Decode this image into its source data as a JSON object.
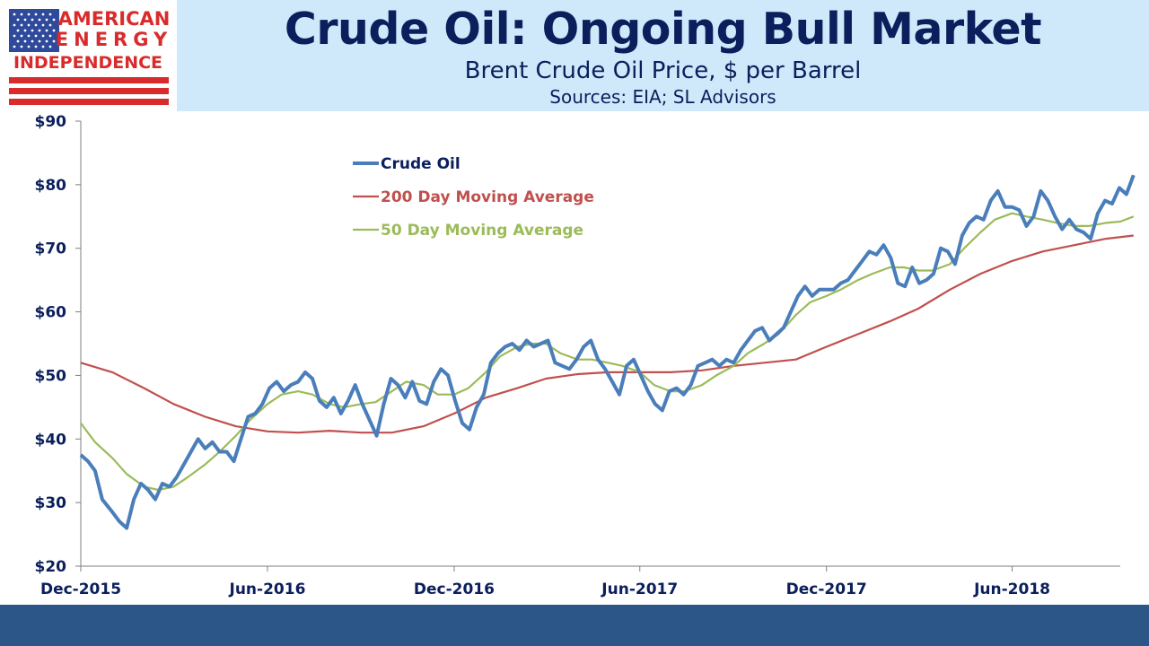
{
  "header": {
    "title": "Crude Oil: Ongoing Bull Market",
    "subtitle": "Brent Crude Oil Price, $ per Barrel",
    "sources": "Sources: EIA; SL Advisors"
  },
  "logo": {
    "line1": "AMERICAN",
    "line2": "ENERGY",
    "line3": "INDEPENDENCE"
  },
  "colors": {
    "title": "#0b1f5c",
    "header_band": "#cfe9fb",
    "footer": "#2c5688",
    "logo_red": "#d92b2b",
    "logo_blue": "#2f4a9a"
  },
  "chart_data": {
    "type": "line",
    "title": "",
    "xlabel": "",
    "ylabel": "",
    "ylim": [
      20,
      90
    ],
    "yticks": [
      20,
      30,
      40,
      50,
      60,
      70,
      80,
      90
    ],
    "ytick_labels": [
      "$20",
      "$30",
      "$40",
      "$50",
      "$60",
      "$70",
      "$80",
      "$90"
    ],
    "xlim": [
      "2015-12-01",
      "2018-09-15"
    ],
    "xticks": [
      "2015-12-01",
      "2016-06-01",
      "2016-12-01",
      "2017-06-01",
      "2017-12-01",
      "2018-06-01"
    ],
    "xtick_labels": [
      "Dec-2015",
      "Jun-2016",
      "Dec-2016",
      "Jun-2017",
      "Dec-2017",
      "Jun-2018"
    ],
    "grid": false,
    "legend_position": "top-left",
    "series": [
      {
        "name": "Crude Oil",
        "color": "#4a7ebb",
        "points": [
          [
            "2015-12-01",
            37.5
          ],
          [
            "2015-12-08",
            36.5
          ],
          [
            "2015-12-15",
            35.0
          ],
          [
            "2015-12-22",
            30.5
          ],
          [
            "2016-01-01",
            28.5
          ],
          [
            "2016-01-08",
            27.0
          ],
          [
            "2016-01-15",
            26.0
          ],
          [
            "2016-01-22",
            30.5
          ],
          [
            "2016-01-29",
            33.0
          ],
          [
            "2016-02-05",
            32.0
          ],
          [
            "2016-02-12",
            30.5
          ],
          [
            "2016-02-19",
            33.0
          ],
          [
            "2016-02-26",
            32.5
          ],
          [
            "2016-03-04",
            34.0
          ],
          [
            "2016-03-11",
            36.0
          ],
          [
            "2016-03-18",
            38.0
          ],
          [
            "2016-03-25",
            40.0
          ],
          [
            "2016-04-01",
            38.5
          ],
          [
            "2016-04-08",
            39.5
          ],
          [
            "2016-04-15",
            38.0
          ],
          [
            "2016-04-22",
            38.0
          ],
          [
            "2016-04-29",
            36.5
          ],
          [
            "2016-05-06",
            40.0
          ],
          [
            "2016-05-13",
            43.5
          ],
          [
            "2016-05-20",
            44.0
          ],
          [
            "2016-05-27",
            45.5
          ],
          [
            "2016-06-03",
            48.0
          ],
          [
            "2016-06-10",
            49.0
          ],
          [
            "2016-06-17",
            47.5
          ],
          [
            "2016-06-24",
            48.5
          ],
          [
            "2016-07-01",
            49.0
          ],
          [
            "2016-07-08",
            50.5
          ],
          [
            "2016-07-15",
            49.5
          ],
          [
            "2016-07-22",
            46.0
          ],
          [
            "2016-07-29",
            45.0
          ],
          [
            "2016-08-05",
            46.5
          ],
          [
            "2016-08-12",
            44.0
          ],
          [
            "2016-08-19",
            46.0
          ],
          [
            "2016-08-26",
            48.5
          ],
          [
            "2016-09-02",
            45.5
          ],
          [
            "2016-09-09",
            43.0
          ],
          [
            "2016-09-16",
            40.5
          ],
          [
            "2016-09-23",
            45.5
          ],
          [
            "2016-09-30",
            49.5
          ],
          [
            "2016-10-07",
            48.5
          ],
          [
            "2016-10-14",
            46.5
          ],
          [
            "2016-10-21",
            49.0
          ],
          [
            "2016-10-28",
            46.0
          ],
          [
            "2016-11-04",
            45.5
          ],
          [
            "2016-11-11",
            49.0
          ],
          [
            "2016-11-18",
            51.0
          ],
          [
            "2016-11-25",
            50.0
          ],
          [
            "2016-12-02",
            46.0
          ],
          [
            "2016-12-09",
            42.5
          ],
          [
            "2016-12-16",
            41.5
          ],
          [
            "2016-12-23",
            45.0
          ],
          [
            "2016-12-30",
            47.0
          ],
          [
            "2017-01-06",
            52.0
          ],
          [
            "2017-01-13",
            53.5
          ],
          [
            "2017-01-20",
            54.5
          ],
          [
            "2017-01-27",
            55.0
          ],
          [
            "2017-02-03",
            54.0
          ],
          [
            "2017-02-10",
            55.5
          ],
          [
            "2017-02-17",
            54.5
          ],
          [
            "2017-02-24",
            55.0
          ],
          [
            "2017-03-03",
            55.5
          ],
          [
            "2017-03-10",
            52.0
          ],
          [
            "2017-03-17",
            51.5
          ],
          [
            "2017-03-24",
            51.0
          ],
          [
            "2017-03-31",
            52.5
          ],
          [
            "2017-04-07",
            54.5
          ],
          [
            "2017-04-14",
            55.5
          ],
          [
            "2017-04-21",
            52.5
          ],
          [
            "2017-04-28",
            51.0
          ],
          [
            "2017-05-05",
            49.0
          ],
          [
            "2017-05-12",
            47.0
          ],
          [
            "2017-05-19",
            51.5
          ],
          [
            "2017-05-26",
            52.5
          ],
          [
            "2017-06-02",
            50.0
          ],
          [
            "2017-06-09",
            47.5
          ],
          [
            "2017-06-16",
            45.5
          ],
          [
            "2017-06-23",
            44.5
          ],
          [
            "2017-06-30",
            47.5
          ],
          [
            "2017-07-07",
            48.0
          ],
          [
            "2017-07-14",
            47.0
          ],
          [
            "2017-07-21",
            48.5
          ],
          [
            "2017-07-28",
            51.5
          ],
          [
            "2017-08-04",
            52.0
          ],
          [
            "2017-08-11",
            52.5
          ],
          [
            "2017-08-18",
            51.5
          ],
          [
            "2017-08-25",
            52.5
          ],
          [
            "2017-09-01",
            52.0
          ],
          [
            "2017-09-08",
            54.0
          ],
          [
            "2017-09-15",
            55.5
          ],
          [
            "2017-09-22",
            57.0
          ],
          [
            "2017-09-29",
            57.5
          ],
          [
            "2017-10-06",
            55.5
          ],
          [
            "2017-10-13",
            56.5
          ],
          [
            "2017-10-20",
            57.5
          ],
          [
            "2017-10-27",
            60.0
          ],
          [
            "2017-11-03",
            62.5
          ],
          [
            "2017-11-10",
            64.0
          ],
          [
            "2017-11-17",
            62.5
          ],
          [
            "2017-11-24",
            63.5
          ],
          [
            "2017-12-01",
            63.5
          ],
          [
            "2017-12-08",
            63.5
          ],
          [
            "2017-12-15",
            64.5
          ],
          [
            "2017-12-22",
            65.0
          ],
          [
            "2017-12-29",
            66.5
          ],
          [
            "2018-01-05",
            68.0
          ],
          [
            "2018-01-12",
            69.5
          ],
          [
            "2018-01-19",
            69.0
          ],
          [
            "2018-01-26",
            70.5
          ],
          [
            "2018-02-02",
            68.5
          ],
          [
            "2018-02-09",
            64.5
          ],
          [
            "2018-02-16",
            64.0
          ],
          [
            "2018-02-23",
            67.0
          ],
          [
            "2018-03-02",
            64.5
          ],
          [
            "2018-03-09",
            65.0
          ],
          [
            "2018-03-16",
            66.0
          ],
          [
            "2018-03-23",
            70.0
          ],
          [
            "2018-03-30",
            69.5
          ],
          [
            "2018-04-06",
            67.5
          ],
          [
            "2018-04-13",
            72.0
          ],
          [
            "2018-04-20",
            74.0
          ],
          [
            "2018-04-27",
            75.0
          ],
          [
            "2018-05-04",
            74.5
          ],
          [
            "2018-05-11",
            77.5
          ],
          [
            "2018-05-18",
            79.0
          ],
          [
            "2018-05-25",
            76.5
          ],
          [
            "2018-06-01",
            76.5
          ],
          [
            "2018-06-08",
            76.0
          ],
          [
            "2018-06-15",
            73.5
          ],
          [
            "2018-06-22",
            75.0
          ],
          [
            "2018-06-29",
            79.0
          ],
          [
            "2018-07-06",
            77.5
          ],
          [
            "2018-07-13",
            75.0
          ],
          [
            "2018-07-20",
            73.0
          ],
          [
            "2018-07-27",
            74.5
          ],
          [
            "2018-08-03",
            73.0
          ],
          [
            "2018-08-10",
            72.5
          ],
          [
            "2018-08-17",
            71.5
          ],
          [
            "2018-08-24",
            75.5
          ],
          [
            "2018-08-31",
            77.5
          ],
          [
            "2018-09-07",
            77.0
          ],
          [
            "2018-09-14",
            79.5
          ],
          [
            "2018-09-21",
            78.5
          ],
          [
            "2018-09-28",
            81.5
          ]
        ]
      },
      {
        "name": "200 Day Moving Average",
        "color": "#c0504d",
        "points": [
          [
            "2015-12-01",
            52.0
          ],
          [
            "2016-01-01",
            50.5
          ],
          [
            "2016-02-01",
            48.0
          ],
          [
            "2016-03-01",
            45.5
          ],
          [
            "2016-04-01",
            43.5
          ],
          [
            "2016-05-01",
            42.0
          ],
          [
            "2016-06-01",
            41.2
          ],
          [
            "2016-07-01",
            41.0
          ],
          [
            "2016-08-01",
            41.3
          ],
          [
            "2016-09-01",
            41.0
          ],
          [
            "2016-10-01",
            41.0
          ],
          [
            "2016-11-01",
            42.0
          ],
          [
            "2016-12-01",
            44.0
          ],
          [
            "2017-01-01",
            46.5
          ],
          [
            "2017-02-01",
            48.0
          ],
          [
            "2017-03-01",
            49.5
          ],
          [
            "2017-04-01",
            50.2
          ],
          [
            "2017-05-01",
            50.5
          ],
          [
            "2017-06-01",
            50.5
          ],
          [
            "2017-07-01",
            50.5
          ],
          [
            "2017-08-01",
            50.8
          ],
          [
            "2017-09-01",
            51.5
          ],
          [
            "2017-10-01",
            52.0
          ],
          [
            "2017-11-01",
            52.5
          ],
          [
            "2017-12-01",
            54.5
          ],
          [
            "2018-01-01",
            56.5
          ],
          [
            "2018-02-01",
            58.5
          ],
          [
            "2018-03-01",
            60.5
          ],
          [
            "2018-04-01",
            63.5
          ],
          [
            "2018-05-01",
            66.0
          ],
          [
            "2018-06-01",
            68.0
          ],
          [
            "2018-07-01",
            69.5
          ],
          [
            "2018-08-01",
            70.5
          ],
          [
            "2018-09-01",
            71.5
          ],
          [
            "2018-09-28",
            72.0
          ]
        ]
      },
      {
        "name": "50 Day Moving Average",
        "color": "#9bbb59",
        "points": [
          [
            "2015-12-01",
            42.5
          ],
          [
            "2015-12-15",
            39.5
          ],
          [
            "2016-01-01",
            37.0
          ],
          [
            "2016-01-15",
            34.5
          ],
          [
            "2016-02-01",
            32.5
          ],
          [
            "2016-02-15",
            32.0
          ],
          [
            "2016-03-01",
            32.5
          ],
          [
            "2016-03-15",
            34.0
          ],
          [
            "2016-04-01",
            36.0
          ],
          [
            "2016-04-15",
            38.0
          ],
          [
            "2016-05-01",
            40.5
          ],
          [
            "2016-05-15",
            43.0
          ],
          [
            "2016-06-01",
            45.5
          ],
          [
            "2016-06-15",
            47.0
          ],
          [
            "2016-07-01",
            47.5
          ],
          [
            "2016-07-15",
            47.0
          ],
          [
            "2016-08-01",
            45.5
          ],
          [
            "2016-08-15",
            45.0
          ],
          [
            "2016-09-01",
            45.5
          ],
          [
            "2016-09-15",
            45.8
          ],
          [
            "2016-10-01",
            47.5
          ],
          [
            "2016-10-15",
            49.0
          ],
          [
            "2016-11-01",
            48.5
          ],
          [
            "2016-11-15",
            47.0
          ],
          [
            "2016-12-01",
            47.0
          ],
          [
            "2016-12-15",
            48.0
          ],
          [
            "2017-01-01",
            50.5
          ],
          [
            "2017-01-15",
            53.0
          ],
          [
            "2017-02-01",
            54.5
          ],
          [
            "2017-02-15",
            55.0
          ],
          [
            "2017-03-01",
            55.0
          ],
          [
            "2017-03-15",
            53.5
          ],
          [
            "2017-04-01",
            52.5
          ],
          [
            "2017-04-15",
            52.5
          ],
          [
            "2017-05-01",
            52.0
          ],
          [
            "2017-05-15",
            51.5
          ],
          [
            "2017-06-01",
            50.5
          ],
          [
            "2017-06-15",
            48.5
          ],
          [
            "2017-07-01",
            47.5
          ],
          [
            "2017-07-15",
            47.5
          ],
          [
            "2017-08-01",
            48.5
          ],
          [
            "2017-08-15",
            50.0
          ],
          [
            "2017-09-01",
            51.5
          ],
          [
            "2017-09-15",
            53.5
          ],
          [
            "2017-10-01",
            55.0
          ],
          [
            "2017-10-15",
            56.5
          ],
          [
            "2017-11-01",
            59.5
          ],
          [
            "2017-11-15",
            61.5
          ],
          [
            "2017-12-01",
            62.5
          ],
          [
            "2017-12-15",
            63.5
          ],
          [
            "2018-01-01",
            65.0
          ],
          [
            "2018-01-15",
            66.0
          ],
          [
            "2018-02-01",
            67.0
          ],
          [
            "2018-02-15",
            67.0
          ],
          [
            "2018-03-01",
            66.5
          ],
          [
            "2018-03-15",
            66.5
          ],
          [
            "2018-04-01",
            67.5
          ],
          [
            "2018-04-15",
            70.0
          ],
          [
            "2018-05-01",
            72.5
          ],
          [
            "2018-05-15",
            74.5
          ],
          [
            "2018-06-01",
            75.5
          ],
          [
            "2018-06-15",
            75.0
          ],
          [
            "2018-07-01",
            74.5
          ],
          [
            "2018-07-15",
            74.0
          ],
          [
            "2018-08-01",
            73.5
          ],
          [
            "2018-08-15",
            73.5
          ],
          [
            "2018-09-01",
            74.0
          ],
          [
            "2018-09-15",
            74.2
          ],
          [
            "2018-09-28",
            75.0
          ]
        ]
      }
    ]
  }
}
